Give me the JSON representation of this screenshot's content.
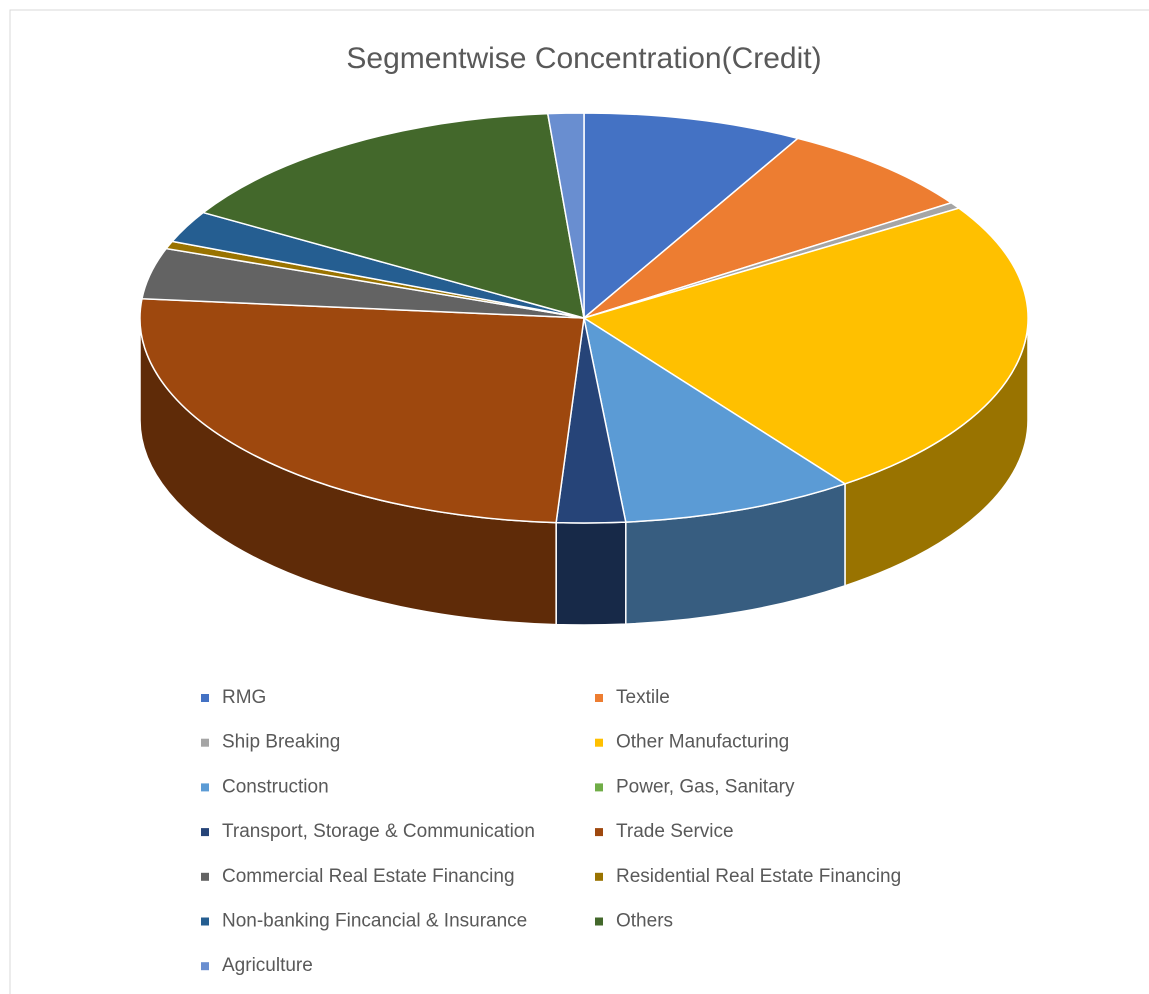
{
  "chart_data": {
    "type": "pie",
    "title": "Segmentwise Concentration(Credit)",
    "categories": [
      "RMG",
      "Textile",
      "Ship Breaking",
      "Other Manufacturing",
      "Construction",
      "Power, Gas, Sanitary",
      "Transport, Storage & Communication",
      "Trade Service",
      "Commercial Real Estate Financing",
      "Residential Real Estate Financing",
      "Non-banking Fincancial & Insurance",
      "Others",
      "Agriculture"
    ],
    "values": [
      8,
      7.5,
      0.5,
      24,
      8.5,
      0,
      2.5,
      25.5,
      4,
      0.6,
      2.5,
      15.1,
      1.3
    ],
    "colors": [
      "#4472c4",
      "#ed7d31",
      "#a5a5a5",
      "#ffc000",
      "#5b9bd5",
      "#70ad47",
      "#264478",
      "#9e480e",
      "#636363",
      "#997300",
      "#255e91",
      "#43682b",
      "#698ed0"
    ],
    "legend": "bottom"
  }
}
